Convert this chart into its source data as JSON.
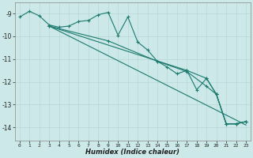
{
  "xlabel": "Humidex (Indice chaleur)",
  "background_color": "#cce8e8",
  "grid_color": "#b8d8d8",
  "line_color": "#1a7a6e",
  "xlim": [
    -0.5,
    23.5
  ],
  "ylim": [
    -14.6,
    -8.5
  ],
  "yticks": [
    -14,
    -13,
    -12,
    -11,
    -10,
    -9
  ],
  "xticks": [
    0,
    1,
    2,
    3,
    4,
    5,
    6,
    7,
    8,
    9,
    10,
    11,
    12,
    13,
    14,
    15,
    16,
    17,
    18,
    19,
    20,
    21,
    22,
    23
  ],
  "series_main": [
    [
      0,
      -9.15
    ],
    [
      1,
      -8.9
    ],
    [
      2,
      -9.1
    ],
    [
      3,
      -9.5
    ],
    [
      4,
      -9.6
    ],
    [
      5,
      -9.55
    ],
    [
      6,
      -9.35
    ],
    [
      7,
      -9.3
    ],
    [
      8,
      -9.05
    ],
    [
      9,
      -8.95
    ],
    [
      10,
      -9.95
    ],
    [
      11,
      -9.15
    ],
    [
      12,
      -10.25
    ],
    [
      13,
      -10.6
    ],
    [
      14,
      -11.1
    ],
    [
      15,
      -11.35
    ],
    [
      16,
      -11.65
    ],
    [
      17,
      -11.5
    ],
    [
      18,
      -12.35
    ],
    [
      19,
      -11.85
    ],
    [
      20,
      -12.55
    ],
    [
      21,
      -13.85
    ],
    [
      22,
      -13.85
    ],
    [
      23,
      -13.75
    ]
  ],
  "series_trend1": [
    [
      3,
      -9.55
    ],
    [
      23,
      -13.9
    ]
  ],
  "series_trend2": [
    [
      3,
      -9.55
    ],
    [
      17,
      -11.5
    ],
    [
      19,
      -11.85
    ],
    [
      20,
      -12.55
    ],
    [
      21,
      -13.85
    ],
    [
      22,
      -13.85
    ],
    [
      23,
      -13.75
    ]
  ],
  "series_trend3": [
    [
      3,
      -9.55
    ],
    [
      9,
      -10.2
    ],
    [
      14,
      -11.1
    ],
    [
      17,
      -11.55
    ],
    [
      19,
      -12.2
    ],
    [
      20,
      -12.55
    ],
    [
      21,
      -13.85
    ],
    [
      22,
      -13.85
    ],
    [
      23,
      -13.75
    ]
  ]
}
